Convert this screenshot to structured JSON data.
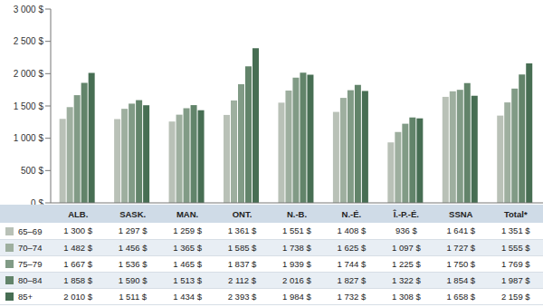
{
  "chart_data": {
    "type": "bar",
    "categories": [
      "ALB.",
      "SASK.",
      "MAN.",
      "ONT.",
      "N.-B.",
      "N.-É.",
      "Î.-P.-É.",
      "SSNA",
      "Total*"
    ],
    "series": [
      {
        "name": "65–69",
        "color": "#b9c1b7",
        "values": [
          1300,
          1297,
          1259,
          1361,
          1551,
          1408,
          936,
          1641,
          1351
        ],
        "value_labels": [
          "1 300 $",
          "1 297 $",
          "1 259 $",
          "1 361 $",
          "1 551 $",
          "1 408 $",
          "936 $",
          "1 641 $",
          "1 351 $"
        ]
      },
      {
        "name": "70–74",
        "color": "#9eaf9f",
        "values": [
          1482,
          1456,
          1365,
          1585,
          1738,
          1625,
          1097,
          1727,
          1555
        ],
        "value_labels": [
          "1 482 $",
          "1 456 $",
          "1 365 $",
          "1 585 $",
          "1 738 $",
          "1 625 $",
          "1 097 $",
          "1 727 $",
          "1 555 $"
        ]
      },
      {
        "name": "75–79",
        "color": "#819b86",
        "values": [
          1667,
          1536,
          1465,
          1837,
          1939,
          1744,
          1225,
          1750,
          1769
        ],
        "value_labels": [
          "1 667 $",
          "1 536 $",
          "1 465 $",
          "1 837 $",
          "1 939 $",
          "1 744 $",
          "1 225 $",
          "1 750 $",
          "1 769 $"
        ]
      },
      {
        "name": "80–84",
        "color": "#62846a",
        "values": [
          1858,
          1590,
          1513,
          2112,
          2016,
          1827,
          1322,
          1854,
          1987
        ],
        "value_labels": [
          "1 858 $",
          "1 590 $",
          "1 513 $",
          "2 112 $",
          "2 016 $",
          "1 827 $",
          "1 322 $",
          "1 854 $",
          "1 987 $"
        ]
      },
      {
        "name": "85+",
        "color": "#476e53",
        "values": [
          2010,
          1511,
          1434,
          2393,
          1984,
          1732,
          1308,
          1658,
          2159
        ],
        "value_labels": [
          "2 010 $",
          "1 511 $",
          "1 434 $",
          "2 393 $",
          "1 984 $",
          "1 732 $",
          "1 308 $",
          "1 658 $",
          "2 159 $"
        ]
      }
    ],
    "ylim": [
      0,
      3000
    ],
    "yticks": [
      {
        "value": 0,
        "label": "0 $"
      },
      {
        "value": 500,
        "label": "500 $"
      },
      {
        "value": 1000,
        "label": "1 000 $"
      },
      {
        "value": 1500,
        "label": "1 500 $"
      },
      {
        "value": 2000,
        "label": "2 000 $"
      },
      {
        "value": 2500,
        "label": "2 500 $"
      },
      {
        "value": 3000,
        "label": "3 000 $"
      }
    ],
    "grid": false
  }
}
